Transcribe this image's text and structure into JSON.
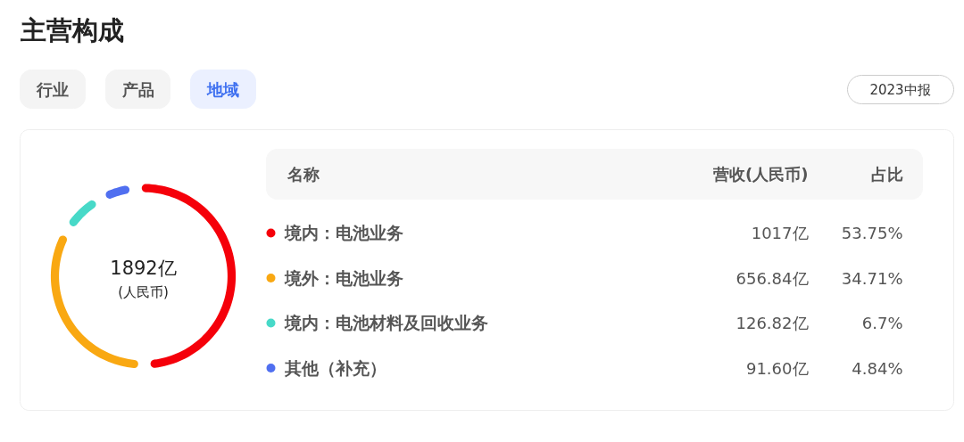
{
  "chart_data": {
    "type": "donut",
    "title": "主营构成",
    "legend_title": "名称",
    "categories": [
      "境内：电池业务",
      "境外：电池业务",
      "境内：电池材料及回收业务",
      "其他（补充）"
    ],
    "values": [
      1017,
      656.84,
      126.82,
      91.6
    ],
    "value_labels": [
      "1017亿",
      "656.84亿",
      "126.82亿",
      "91.60亿"
    ],
    "colors": [
      "#f5000a",
      "#f9a812",
      "#47d9c8",
      "#506ff0"
    ],
    "legend": "right",
    "annotations": [
      "行业",
      "产品",
      "地域",
      "2023中报",
      "1892亿",
      "(人民币)",
      "营收(人民币)",
      "占比",
      "53.75%",
      "34.71%",
      "6.7%",
      "4.84%"
    ]
  }
}
